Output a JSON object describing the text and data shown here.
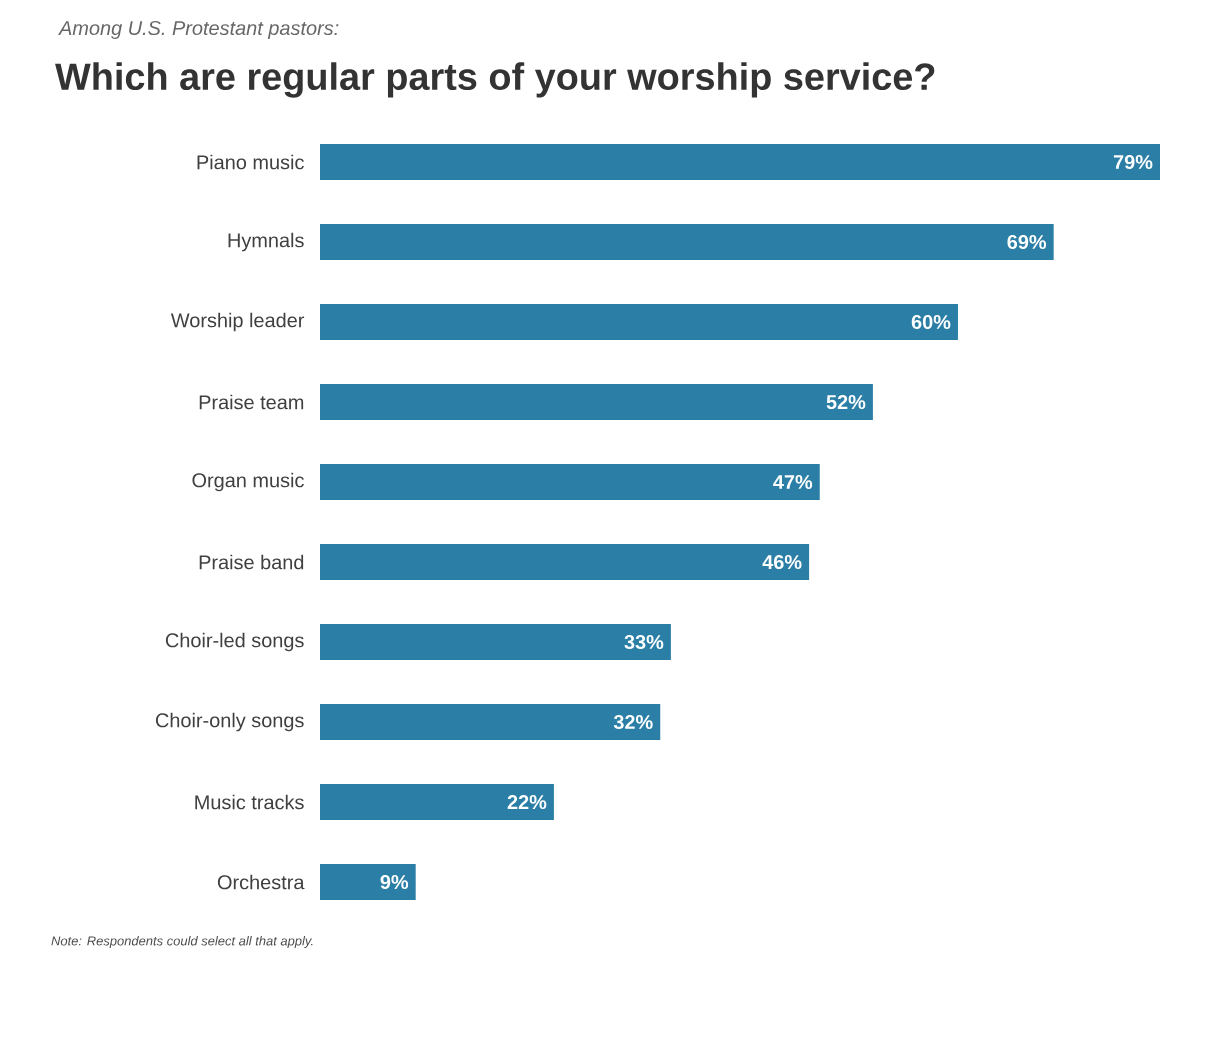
{
  "chart_data": {
    "type": "bar",
    "orientation": "horizontal",
    "subtitle": "Among U.S. Protestant pastors:",
    "title": "Which are regular parts of your worship service?",
    "categories": [
      "Piano music",
      "Hymnals",
      "Worship leader",
      "Praise team",
      "Organ music",
      "Praise band",
      "Choir-led songs",
      "Choir-only songs",
      "Music tracks",
      "Orchestra"
    ],
    "values": [
      79,
      69,
      60,
      52,
      47,
      46,
      33,
      32,
      22,
      9
    ],
    "value_labels": [
      "79%",
      "69%",
      "60%",
      "52%",
      "47%",
      "46%",
      "33%",
      "32%",
      "22%",
      "9%"
    ],
    "color": "#2b7fa6",
    "annotations": [
      "Note: Respondents could select all that apply."
    ]
  }
}
